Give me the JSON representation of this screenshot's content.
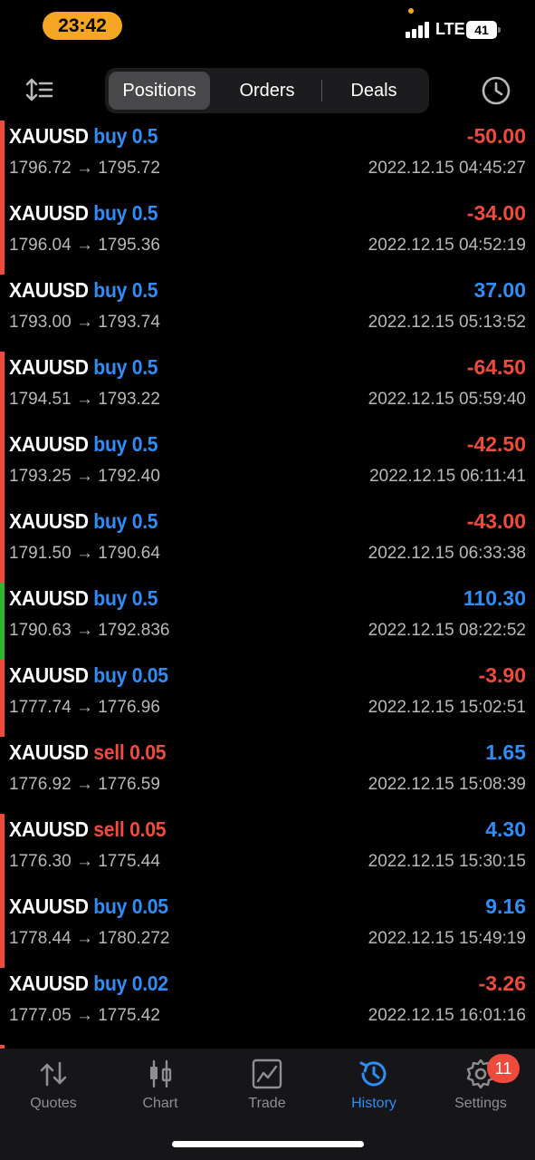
{
  "status_bar": {
    "time": "23:42",
    "network": "LTE",
    "battery": "41"
  },
  "header": {
    "tabs": [
      {
        "label": "Positions",
        "active": true
      },
      {
        "label": "Orders",
        "active": false
      },
      {
        "label": "Deals",
        "active": false
      }
    ]
  },
  "colors": {
    "profit": "#2f8df5",
    "loss": "#ef4a3c",
    "green_marker": "#2eb82e"
  },
  "deals": [
    {
      "symbol": "XAUUSD",
      "side": "buy",
      "volume": "0.5",
      "prices": "1796.72 → 1795.72",
      "profit": "-50.00",
      "time": "2022.12.15 04:45:27",
      "marker": "red"
    },
    {
      "symbol": "XAUUSD",
      "side": "buy",
      "volume": "0.5",
      "prices": "1796.04 → 1795.36",
      "profit": "-34.00",
      "time": "2022.12.15 04:52:19",
      "marker": "red"
    },
    {
      "symbol": "XAUUSD",
      "side": "buy",
      "volume": "0.5",
      "prices": "1793.00 → 1793.74",
      "profit": "37.00",
      "time": "2022.12.15 05:13:52",
      "marker": "none"
    },
    {
      "symbol": "XAUUSD",
      "side": "buy",
      "volume": "0.5",
      "prices": "1794.51 → 1793.22",
      "profit": "-64.50",
      "time": "2022.12.15 05:59:40",
      "marker": "red"
    },
    {
      "symbol": "XAUUSD",
      "side": "buy",
      "volume": "0.5",
      "prices": "1793.25 → 1792.40",
      "profit": "-42.50",
      "time": "2022.12.15 06:11:41",
      "marker": "red"
    },
    {
      "symbol": "XAUUSD",
      "side": "buy",
      "volume": "0.5",
      "prices": "1791.50 → 1790.64",
      "profit": "-43.00",
      "time": "2022.12.15 06:33:38",
      "marker": "red"
    },
    {
      "symbol": "XAUUSD",
      "side": "buy",
      "volume": "0.5",
      "prices": "1790.63 → 1792.836",
      "profit": "110.30",
      "time": "2022.12.15 08:22:52",
      "marker": "green"
    },
    {
      "symbol": "XAUUSD",
      "side": "buy",
      "volume": "0.05",
      "prices": "1777.74 → 1776.96",
      "profit": "-3.90",
      "time": "2022.12.15 15:02:51",
      "marker": "red"
    },
    {
      "symbol": "XAUUSD",
      "side": "sell",
      "volume": "0.05",
      "prices": "1776.92 → 1776.59",
      "profit": "1.65",
      "time": "2022.12.15 15:08:39",
      "marker": "none"
    },
    {
      "symbol": "XAUUSD",
      "side": "sell",
      "volume": "0.05",
      "prices": "1776.30 → 1775.44",
      "profit": "4.30",
      "time": "2022.12.15 15:30:15",
      "marker": "red"
    },
    {
      "symbol": "XAUUSD",
      "side": "buy",
      "volume": "0.05",
      "prices": "1778.44 → 1780.272",
      "profit": "9.16",
      "time": "2022.12.15 15:49:19",
      "marker": "red"
    },
    {
      "symbol": "XAUUSD",
      "side": "buy",
      "volume": "0.02",
      "prices": "1777.05 → 1775.42",
      "profit": "-3.26",
      "time": "2022.12.15 16:01:16",
      "marker": "none"
    }
  ],
  "tab_bar": {
    "items": [
      {
        "label": "Quotes",
        "icon": "arrows-updown-icon",
        "active": false
      },
      {
        "label": "Chart",
        "icon": "candlestick-icon",
        "active": false
      },
      {
        "label": "Trade",
        "icon": "trade-chart-icon",
        "active": false
      },
      {
        "label": "History",
        "icon": "history-icon",
        "active": true
      },
      {
        "label": "Settings",
        "icon": "gear-icon",
        "active": false
      }
    ],
    "settings_badge": "11"
  }
}
